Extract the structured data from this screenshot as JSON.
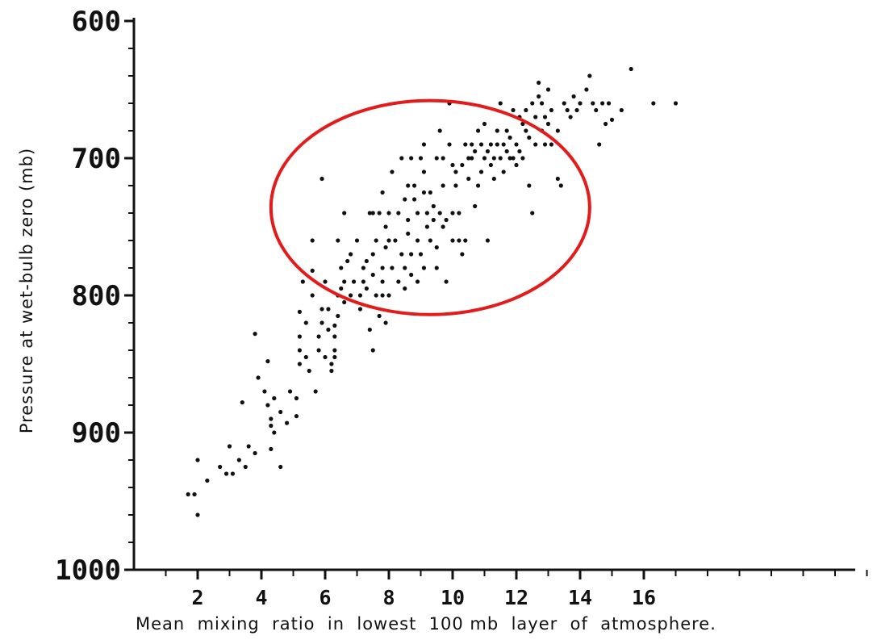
{
  "chart_data": {
    "type": "scatter",
    "xlabel": "Mean  mixing  ratio  in  lowest  100 mb  layer  of  atmosphere.",
    "ylabel": "Pressure  at  wet-bulb  zero  (mb)",
    "xlim": [
      0,
      24
    ],
    "ylim": [
      600,
      1000
    ],
    "y_inverted": true,
    "x_ticks": [
      2,
      4,
      6,
      8,
      10,
      12,
      14,
      16
    ],
    "y_ticks": [
      600,
      700,
      800,
      900,
      1000
    ],
    "x_tick_labels": [
      "2",
      "4",
      "6",
      "8",
      "10",
      "12",
      "14",
      "16"
    ],
    "y_tick_labels": [
      "600",
      "700",
      "800",
      "900",
      "1000"
    ],
    "grid": false,
    "marker_color": "#111111",
    "highlight_color": "#e31b1b",
    "highlight_ellipse": {
      "cx": 9.3,
      "cy": 736,
      "rx": 5.0,
      "ry": 78
    },
    "series": [
      {
        "values": [
          [
            1.7,
            945
          ],
          [
            1.9,
            945
          ],
          [
            2.0,
            960
          ],
          [
            2.0,
            920
          ],
          [
            2.3,
            935
          ],
          [
            2.7,
            925
          ],
          [
            2.9,
            930
          ],
          [
            3.0,
            910
          ],
          [
            3.1,
            930
          ],
          [
            3.3,
            920
          ],
          [
            3.4,
            878
          ],
          [
            3.5,
            925
          ],
          [
            3.6,
            910
          ],
          [
            3.8,
            915
          ],
          [
            3.8,
            828
          ],
          [
            3.9,
            860
          ],
          [
            4.1,
            870
          ],
          [
            4.2,
            880
          ],
          [
            4.3,
            890
          ],
          [
            4.3,
            895
          ],
          [
            4.3,
            912
          ],
          [
            4.4,
            900
          ],
          [
            4.2,
            848
          ],
          [
            4.4,
            875
          ],
          [
            4.6,
            885
          ],
          [
            4.6,
            925
          ],
          [
            4.8,
            893
          ],
          [
            4.9,
            870
          ],
          [
            5.1,
            888
          ],
          [
            5.1,
            875
          ],
          [
            5.2,
            850
          ],
          [
            5.2,
            840
          ],
          [
            5.2,
            830
          ],
          [
            5.2,
            812
          ],
          [
            5.3,
            790
          ],
          [
            5.4,
            820
          ],
          [
            5.4,
            845
          ],
          [
            5.5,
            855
          ],
          [
            5.6,
            800
          ],
          [
            5.6,
            760
          ],
          [
            5.6,
            782
          ],
          [
            5.7,
            870
          ],
          [
            5.8,
            840
          ],
          [
            5.8,
            830
          ],
          [
            5.9,
            820
          ],
          [
            5.9,
            810
          ],
          [
            6.0,
            845
          ],
          [
            6.0,
            790
          ],
          [
            6.1,
            825
          ],
          [
            6.1,
            810
          ],
          [
            6.2,
            850
          ],
          [
            6.2,
            855
          ],
          [
            5.9,
            715
          ],
          [
            6.3,
            845
          ],
          [
            6.3,
            840
          ],
          [
            6.3,
            830
          ],
          [
            6.3,
            822
          ],
          [
            6.4,
            800
          ],
          [
            6.4,
            815
          ],
          [
            6.5,
            780
          ],
          [
            6.5,
            795
          ],
          [
            6.6,
            790
          ],
          [
            6.6,
            805
          ],
          [
            6.4,
            760
          ],
          [
            6.6,
            740
          ],
          [
            6.7,
            775
          ],
          [
            6.8,
            770
          ],
          [
            6.8,
            800
          ],
          [
            6.9,
            790
          ],
          [
            7.0,
            760
          ],
          [
            7.1,
            800
          ],
          [
            7.1,
            810
          ],
          [
            7.2,
            780
          ],
          [
            7.2,
            790
          ],
          [
            7.3,
            775
          ],
          [
            7.3,
            795
          ],
          [
            7.4,
            740
          ],
          [
            7.4,
            825
          ],
          [
            7.5,
            740
          ],
          [
            7.5,
            770
          ],
          [
            7.5,
            785
          ],
          [
            7.5,
            840
          ],
          [
            7.6,
            760
          ],
          [
            7.6,
            800
          ],
          [
            7.7,
            740
          ],
          [
            7.7,
            815
          ],
          [
            7.8,
            725
          ],
          [
            7.8,
            780
          ],
          [
            7.8,
            790
          ],
          [
            7.8,
            800
          ],
          [
            7.9,
            750
          ],
          [
            7.9,
            765
          ],
          [
            7.9,
            820
          ],
          [
            8.0,
            740
          ],
          [
            8.0,
            760
          ],
          [
            8.0,
            800
          ],
          [
            8.1,
            710
          ],
          [
            8.1,
            780
          ],
          [
            8.2,
            760
          ],
          [
            8.3,
            740
          ],
          [
            8.3,
            790
          ],
          [
            8.4,
            700
          ],
          [
            8.4,
            770
          ],
          [
            8.5,
            730
          ],
          [
            8.5,
            780
          ],
          [
            8.5,
            795
          ],
          [
            8.6,
            720
          ],
          [
            8.6,
            745
          ],
          [
            8.6,
            755
          ],
          [
            8.7,
            700
          ],
          [
            8.7,
            770
          ],
          [
            8.7,
            785
          ],
          [
            8.8,
            720
          ],
          [
            8.8,
            730
          ],
          [
            8.9,
            740
          ],
          [
            8.9,
            760
          ],
          [
            8.9,
            790
          ],
          [
            9.0,
            700
          ],
          [
            9.0,
            770
          ],
          [
            9.1,
            690
          ],
          [
            9.1,
            710
          ],
          [
            9.1,
            725
          ],
          [
            9.1,
            780
          ],
          [
            9.2,
            740
          ],
          [
            9.2,
            750
          ],
          [
            9.3,
            725
          ],
          [
            9.3,
            760
          ],
          [
            9.4,
            735
          ],
          [
            9.4,
            745
          ],
          [
            9.5,
            700
          ],
          [
            9.5,
            765
          ],
          [
            9.5,
            780
          ],
          [
            9.6,
            680
          ],
          [
            9.6,
            740
          ],
          [
            9.7,
            700
          ],
          [
            9.7,
            720
          ],
          [
            9.7,
            750
          ],
          [
            9.8,
            745
          ],
          [
            9.8,
            790
          ],
          [
            9.9,
            660
          ],
          [
            9.9,
            690
          ],
          [
            10.0,
            705
          ],
          [
            10.0,
            740
          ],
          [
            10.0,
            760
          ],
          [
            10.1,
            710
          ],
          [
            10.1,
            720
          ],
          [
            10.2,
            740
          ],
          [
            10.2,
            760
          ],
          [
            10.3,
            705
          ],
          [
            10.3,
            770
          ],
          [
            10.4,
            690
          ],
          [
            10.4,
            760
          ],
          [
            10.5,
            700
          ],
          [
            10.5,
            715
          ],
          [
            10.6,
            690
          ],
          [
            10.6,
            700
          ],
          [
            10.7,
            695
          ],
          [
            10.7,
            735
          ],
          [
            10.8,
            680
          ],
          [
            10.8,
            720
          ],
          [
            10.9,
            690
          ],
          [
            10.9,
            710
          ],
          [
            11.0,
            675
          ],
          [
            11.0,
            700
          ],
          [
            11.1,
            695
          ],
          [
            11.1,
            760
          ],
          [
            11.2,
            690
          ],
          [
            11.2,
            705
          ],
          [
            11.3,
            700
          ],
          [
            11.3,
            715
          ],
          [
            11.4,
            680
          ],
          [
            11.4,
            690
          ],
          [
            11.5,
            660
          ],
          [
            11.5,
            700
          ],
          [
            11.6,
            690
          ],
          [
            11.6,
            710
          ],
          [
            11.7,
            680
          ],
          [
            11.7,
            695
          ],
          [
            11.8,
            685
          ],
          [
            11.8,
            700
          ],
          [
            11.9,
            665
          ],
          [
            11.9,
            700
          ],
          [
            12.0,
            690
          ],
          [
            12.0,
            705
          ],
          [
            12.1,
            670
          ],
          [
            12.1,
            695
          ],
          [
            12.2,
            675
          ],
          [
            12.2,
            700
          ],
          [
            12.3,
            665
          ],
          [
            12.3,
            680
          ],
          [
            12.4,
            685
          ],
          [
            12.4,
            720
          ],
          [
            12.5,
            660
          ],
          [
            12.5,
            740
          ],
          [
            12.6,
            670
          ],
          [
            12.6,
            690
          ],
          [
            12.7,
            645
          ],
          [
            12.7,
            655
          ],
          [
            12.8,
            660
          ],
          [
            12.8,
            680
          ],
          [
            12.9,
            670
          ],
          [
            12.9,
            690
          ],
          [
            13.0,
            650
          ],
          [
            13.0,
            675
          ],
          [
            13.1,
            665
          ],
          [
            13.1,
            690
          ],
          [
            13.3,
            680
          ],
          [
            13.3,
            715
          ],
          [
            13.4,
            720
          ],
          [
            13.5,
            660
          ],
          [
            13.6,
            665
          ],
          [
            13.7,
            670
          ],
          [
            13.8,
            655
          ],
          [
            13.9,
            665
          ],
          [
            14.0,
            660
          ],
          [
            14.2,
            650
          ],
          [
            14.3,
            640
          ],
          [
            14.4,
            660
          ],
          [
            14.5,
            665
          ],
          [
            14.6,
            690
          ],
          [
            14.7,
            660
          ],
          [
            14.8,
            675
          ],
          [
            14.9,
            660
          ],
          [
            15.0,
            672
          ],
          [
            15.3,
            665
          ],
          [
            15.6,
            635
          ],
          [
            16.3,
            660
          ],
          [
            17.0,
            660
          ]
        ]
      }
    ]
  }
}
